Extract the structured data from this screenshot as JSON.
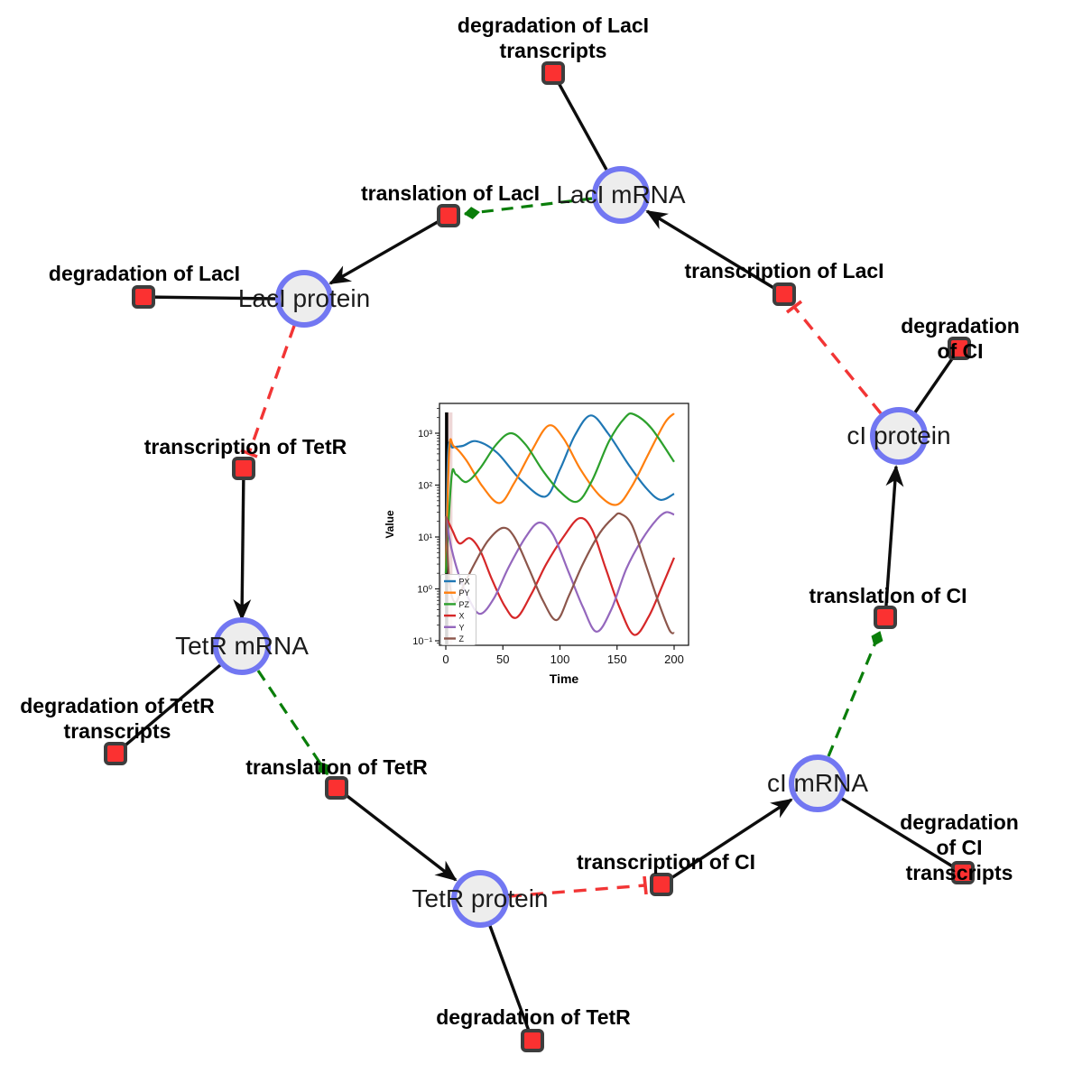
{
  "diagram": {
    "species": {
      "laci_mrna": "LacI mRNA",
      "laci_protein": "LacI protein",
      "ci_protein": "cI protein",
      "tetr_mrna": "TetR mRNA",
      "ci_mrna": "cI mRNA",
      "tetr_protein": "TetR protein"
    },
    "reactions": {
      "deg_laci_tx": "degradation of LacI\ntranscripts",
      "translation_laci": "translation of LacI",
      "transcription_laci": "transcription of LacI",
      "deg_laci": "degradation of LacI",
      "deg_ci": "degradation of CI",
      "transcription_tetr": "transcription of TetR",
      "translation_ci": "translation of CI",
      "deg_tetr_tx": "degradation of TetR\ntranscripts",
      "translation_tetr": "translation of TetR",
      "deg_ci_tx": "degradation of CI\ntranscripts",
      "transcription_ci": "transcription of CI",
      "deg_tetr": "degradation of TetR"
    },
    "colors": {
      "species_fill": "#ededed",
      "species_stroke": "#7277f2",
      "reaction_fill": "#fb3131",
      "reaction_stroke": "#3d3d3d",
      "edge_solid": "#0d0d0d",
      "edge_activation": "#0a7e0a",
      "edge_inhibition": "#f23535"
    }
  },
  "chart_data": {
    "type": "line",
    "title": "",
    "xlabel": "Time",
    "ylabel": "Value",
    "x_ticks": [
      0,
      50,
      100,
      150,
      200
    ],
    "xlim": [
      -6,
      212
    ],
    "y_scale": "log",
    "y_tick_exponents": [
      -1,
      0,
      1,
      2,
      3
    ],
    "y_tick_labels": [
      "10⁻¹",
      "10⁰",
      "10¹",
      "10²",
      "10³"
    ],
    "ylim_log": [
      -1.08,
      3.57
    ],
    "grid": false,
    "legend_position": "lower left",
    "t0_marker_line": 0.7,
    "series": [
      {
        "name": "PX",
        "color": "#1f77b4",
        "points": [
          [
            0,
            2
          ],
          [
            2,
            420
          ],
          [
            6,
            530
          ],
          [
            15,
            570
          ],
          [
            27,
            700
          ],
          [
            45,
            420
          ],
          [
            65,
            130
          ],
          [
            87,
            60
          ],
          [
            100,
            200
          ],
          [
            113,
            900
          ],
          [
            127,
            2200
          ],
          [
            142,
            1000
          ],
          [
            160,
            250
          ],
          [
            175,
            90
          ],
          [
            188,
            52
          ],
          [
            200,
            68
          ]
        ]
      },
      {
        "name": "PY",
        "color": "#ff7f0e",
        "points": [
          [
            0,
            2
          ],
          [
            3,
            470
          ],
          [
            7,
            560
          ],
          [
            18,
            300
          ],
          [
            32,
            95
          ],
          [
            47,
            45
          ],
          [
            60,
            110
          ],
          [
            75,
            450
          ],
          [
            90,
            1400
          ],
          [
            103,
            800
          ],
          [
            118,
            200
          ],
          [
            135,
            62
          ],
          [
            150,
            42
          ],
          [
            163,
            95
          ],
          [
            178,
            420
          ],
          [
            192,
            1600
          ],
          [
            200,
            2400
          ]
        ]
      },
      {
        "name": "PZ",
        "color": "#2ca02c",
        "points": [
          [
            0,
            2
          ],
          [
            5,
            140
          ],
          [
            9,
            160
          ],
          [
            18,
            115
          ],
          [
            30,
            210
          ],
          [
            44,
            600
          ],
          [
            57,
            1000
          ],
          [
            70,
            600
          ],
          [
            85,
            190
          ],
          [
            100,
            75
          ],
          [
            115,
            48
          ],
          [
            128,
            120
          ],
          [
            143,
            700
          ],
          [
            157,
            2000
          ],
          [
            165,
            2300
          ],
          [
            180,
            1250
          ],
          [
            200,
            280
          ]
        ]
      },
      {
        "name": "X",
        "color": "#d62728",
        "points": [
          [
            0,
            25
          ],
          [
            6,
            13
          ],
          [
            12,
            7.5
          ],
          [
            21,
            9.5
          ],
          [
            30,
            5.5
          ],
          [
            40,
            1.6
          ],
          [
            52,
            0.45
          ],
          [
            62,
            0.28
          ],
          [
            75,
            0.8
          ],
          [
            88,
            3
          ],
          [
            103,
            10
          ],
          [
            117,
            23
          ],
          [
            128,
            14
          ],
          [
            140,
            2.5
          ],
          [
            152,
            0.45
          ],
          [
            165,
            0.13
          ],
          [
            178,
            0.3
          ],
          [
            190,
            1.2
          ],
          [
            200,
            4
          ]
        ]
      },
      {
        "name": "Y",
        "color": "#9467bd",
        "points": [
          [
            0,
            25
          ],
          [
            5,
            6
          ],
          [
            12,
            1.7
          ],
          [
            20,
            0.65
          ],
          [
            30,
            0.33
          ],
          [
            42,
            0.65
          ],
          [
            55,
            2.6
          ],
          [
            70,
            10
          ],
          [
            82,
            19
          ],
          [
            94,
            11
          ],
          [
            108,
            2
          ],
          [
            120,
            0.45
          ],
          [
            132,
            0.15
          ],
          [
            145,
            0.4
          ],
          [
            158,
            2.4
          ],
          [
            172,
            9
          ],
          [
            185,
            22
          ],
          [
            193,
            30
          ],
          [
            200,
            27
          ]
        ]
      },
      {
        "name": "Z",
        "color": "#8c564b",
        "points": [
          [
            0,
            25
          ],
          [
            3,
            1.5
          ],
          [
            8,
            0.55
          ],
          [
            15,
            1.1
          ],
          [
            25,
            3
          ],
          [
            37,
            8.5
          ],
          [
            50,
            15
          ],
          [
            60,
            10
          ],
          [
            73,
            2.4
          ],
          [
            85,
            0.6
          ],
          [
            97,
            0.25
          ],
          [
            108,
            0.75
          ],
          [
            120,
            3
          ],
          [
            135,
            12
          ],
          [
            147,
            24
          ],
          [
            153,
            28
          ],
          [
            163,
            17
          ],
          [
            175,
            3
          ],
          [
            187,
            0.5
          ],
          [
            196,
            0.16
          ],
          [
            200,
            0.14
          ]
        ]
      }
    ]
  }
}
